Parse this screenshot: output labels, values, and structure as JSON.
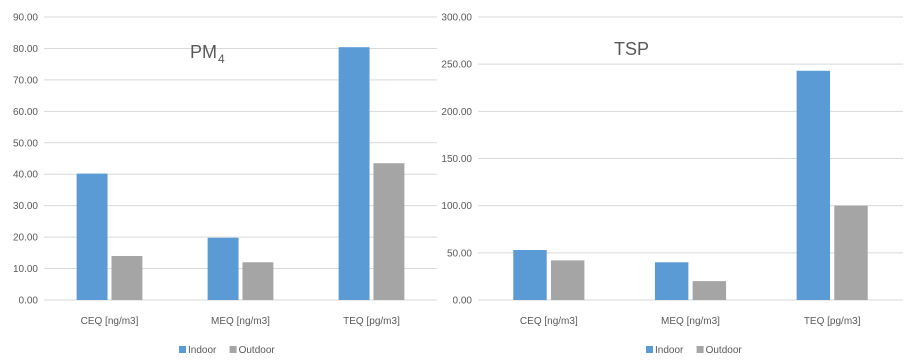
{
  "chart_data": [
    {
      "type": "bar",
      "title": "PM",
      "title_subscript": "4",
      "categories": [
        "CEQ [ng/m3]",
        "MEQ [ng/m3]",
        "TEQ [pg/m3]"
      ],
      "series": [
        {
          "name": "Indoor",
          "color": "#5B9BD5",
          "values": [
            40.2,
            19.8,
            80.4
          ]
        },
        {
          "name": "Outdoor",
          "color": "#A5A5A5",
          "values": [
            14.0,
            12.0,
            43.5
          ]
        }
      ],
      "ylim": [
        0,
        90
      ],
      "yticks": [
        "0.00",
        "10.00",
        "20.00",
        "30.00",
        "40.00",
        "50.00",
        "60.00",
        "70.00",
        "80.00",
        "90.00"
      ],
      "ytick_values": [
        0,
        10,
        20,
        30,
        40,
        50,
        60,
        70,
        80,
        90
      ],
      "grid": true,
      "legend": "bottom"
    },
    {
      "type": "bar",
      "title": "TSP",
      "title_subscript": "",
      "categories": [
        "CEQ [ng/m3]",
        "MEQ [ng/m3]",
        "TEQ [pg/m3]"
      ],
      "series": [
        {
          "name": "Indoor",
          "color": "#5B9BD5",
          "values": [
            53,
            40,
            243
          ]
        },
        {
          "name": "Outdoor",
          "color": "#A5A5A5",
          "values": [
            42,
            20,
            100
          ]
        }
      ],
      "ylim": [
        0,
        300
      ],
      "yticks": [
        "0.00",
        "50.00",
        "100.00",
        "150.00",
        "200.00",
        "250.00",
        "300.00"
      ],
      "ytick_values": [
        0,
        50,
        100,
        150,
        200,
        250,
        300
      ],
      "grid": true,
      "legend": "bottom"
    }
  ]
}
